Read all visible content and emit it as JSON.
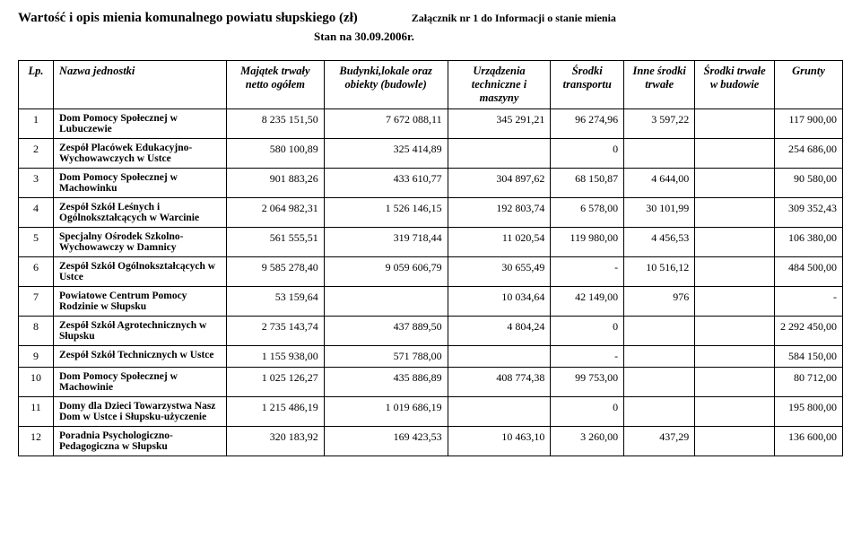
{
  "header": {
    "title": "Wartość i opis mienia komunalnego powiatu słupskiego (zł)",
    "attachment": "Załącznik nr 1 do Informacji o stanie mienia",
    "date_line": "Stan na 30.09.2006r."
  },
  "columns": [
    "Lp.",
    "Nazwa jednostki",
    "Majątek trwały netto ogółem",
    "Budynki,lokale oraz obiekty (budowle)",
    "Urządzenia techniczne i maszyny",
    "Środki transportu",
    "Inne środki trwałe",
    "Środki trwałe w budowie",
    "Grunty"
  ],
  "rows": [
    {
      "lp": "1",
      "name": "Dom Pomocy Społecznej w Lubuczewie",
      "c": [
        "8 235 151,50",
        "7 672 088,11",
        "345 291,21",
        "96 274,96",
        "3 597,22",
        "",
        "117 900,00"
      ]
    },
    {
      "lp": "2",
      "name": "Zespół Placówek Edukacyjno-Wychowawczych w Ustce",
      "c": [
        "580 100,89",
        "325 414,89",
        "",
        "0",
        "",
        "",
        "254 686,00"
      ]
    },
    {
      "lp": "3",
      "name": "Dom Pomocy Społecznej w Machowinku",
      "c": [
        "901 883,26",
        "433 610,77",
        "304 897,62",
        "68 150,87",
        "4 644,00",
        "",
        "90 580,00"
      ]
    },
    {
      "lp": "4",
      "name": "Zespół Szkół Leśnych i Ogólnokształcących w Warcinie",
      "c": [
        "2 064 982,31",
        "1 526 146,15",
        "192 803,74",
        "6 578,00",
        "30 101,99",
        "",
        "309 352,43"
      ]
    },
    {
      "lp": "5",
      "name": "Specjalny Ośrodek Szkolno-Wychowawczy w Damnicy",
      "c": [
        "561 555,51",
        "319 718,44",
        "11 020,54",
        "119 980,00",
        "4 456,53",
        "",
        "106 380,00"
      ]
    },
    {
      "lp": "6",
      "name": "Zespół Szkół Ogólnokształcących w Ustce",
      "c": [
        "9 585 278,40",
        "9 059 606,79",
        "30 655,49",
        "-",
        "10 516,12",
        "",
        "484 500,00"
      ]
    },
    {
      "lp": "7",
      "name": "Powiatowe Centrum Pomocy Rodzinie w Słupsku",
      "c": [
        "53 159,64",
        "",
        "10 034,64",
        "42 149,00",
        "976",
        "",
        "-"
      ]
    },
    {
      "lp": "8",
      "name": "Zespół Szkół Agrotechnicznych w Słupsku",
      "c": [
        "2 735 143,74",
        "437 889,50",
        "4 804,24",
        "0",
        "",
        "",
        "2 292 450,00"
      ]
    },
    {
      "lp": "9",
      "name": "Zespół Szkół Technicznych w Ustce",
      "c": [
        "1 155 938,00",
        "571 788,00",
        "",
        "-",
        "",
        "",
        "584 150,00"
      ]
    },
    {
      "lp": "10",
      "name": "Dom Pomocy Społecznej w Machowinie",
      "c": [
        "1 025 126,27",
        "435 886,89",
        "408 774,38",
        "99 753,00",
        "",
        "",
        "80 712,00"
      ]
    },
    {
      "lp": "11",
      "name": "Domy dla Dzieci Towarzystwa Nasz Dom w Ustce i Słupsku-użyczenie",
      "c": [
        "1 215 486,19",
        "1 019 686,19",
        "",
        "0",
        "",
        "",
        "195 800,00"
      ]
    },
    {
      "lp": "12",
      "name": "Poradnia Psychologiczno-Pedagogiczna w Słupsku",
      "c": [
        "320 183,92",
        "169 423,53",
        "10 463,10",
        "3 260,00",
        "437,29",
        "",
        "136 600,00"
      ]
    }
  ]
}
